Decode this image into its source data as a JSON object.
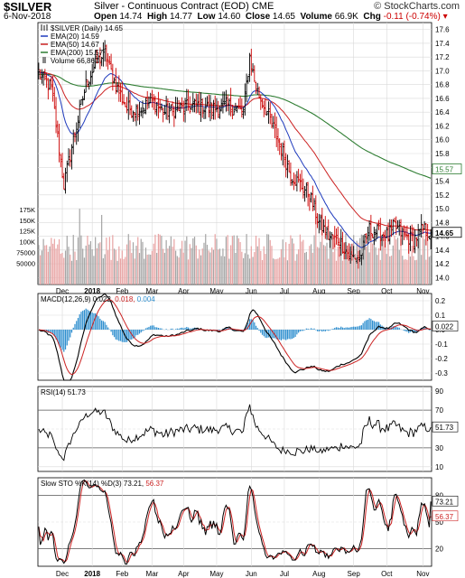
{
  "header": {
    "symbol": "$SILVER",
    "description": "Silver - Continuous Contract (EOD) CME",
    "brand": "© StockCharts.com",
    "date": "6-Nov-2018",
    "open_label": "Open",
    "open": "14.74",
    "high_label": "High",
    "high": "14.77",
    "low_label": "Low",
    "low": "14.60",
    "close_label": "Close",
    "close": "14.65",
    "volume_label": "Volume",
    "volume": "66.9K",
    "chg_label": "Chg",
    "chg": "-0.11 (-0.74%)"
  },
  "legend": {
    "symbol": "$SILVER (Daily) 14.65",
    "ema20": "EMA(20) 14.59",
    "ema50": "EMA(50) 14.67",
    "ema200": "EMA(200) 15.57",
    "volume": "Volume 66,867"
  },
  "colors": {
    "up": "#000000",
    "down": "#cc0000",
    "ema20": "#1f3bbd",
    "ema50": "#cc2222",
    "ema200": "#2e7d32",
    "vol_up": "#a6a6a6",
    "vol_down": "#e8a4a4",
    "macd_hist": "#2f8fcf",
    "grid": "#d9d9d9"
  },
  "chart_data": [
    {
      "type": "candlestick",
      "title": "$SILVER (Daily) 14.65",
      "ylim": [
        13.9,
        17.7
      ],
      "yticks": [
        "14.0",
        "14.2",
        "14.4",
        "14.6",
        "14.8",
        "15.0",
        "15.2",
        "15.4",
        "15.6",
        "15.8",
        "16.0",
        "16.2",
        "16.4",
        "16.6",
        "16.8",
        "17.0",
        "17.2",
        "17.4",
        "17.6"
      ],
      "xticks": [
        "Dec",
        "2018",
        "Feb",
        "Mar",
        "Apr",
        "May",
        "Jun",
        "Jul",
        "Aug",
        "Sep",
        "Oct",
        "Nov"
      ],
      "xtick_index": [
        15,
        34,
        53,
        72,
        92,
        113,
        135,
        156,
        178,
        200,
        221,
        244
      ],
      "n_points": 250,
      "keypoints_close": [
        [
          0,
          16.95
        ],
        [
          8,
          16.75
        ],
        [
          16,
          15.35
        ],
        [
          22,
          16.0
        ],
        [
          30,
          16.8
        ],
        [
          36,
          17.1
        ],
        [
          42,
          17.25
        ],
        [
          48,
          16.85
        ],
        [
          56,
          16.45
        ],
        [
          64,
          16.45
        ],
        [
          72,
          16.55
        ],
        [
          80,
          16.4
        ],
        [
          90,
          16.45
        ],
        [
          100,
          16.5
        ],
        [
          110,
          16.45
        ],
        [
          120,
          16.5
        ],
        [
          130,
          16.4
        ],
        [
          134,
          17.2
        ],
        [
          138,
          16.75
        ],
        [
          145,
          16.4
        ],
        [
          152,
          16.0
        ],
        [
          160,
          15.5
        ],
        [
          166,
          15.35
        ],
        [
          172,
          15.2
        ],
        [
          178,
          14.8
        ],
        [
          184,
          14.6
        ],
        [
          192,
          14.5
        ],
        [
          198,
          14.3
        ],
        [
          204,
          14.3
        ],
        [
          210,
          14.7
        ],
        [
          216,
          14.65
        ],
        [
          222,
          14.6
        ],
        [
          226,
          14.75
        ],
        [
          232,
          14.6
        ],
        [
          238,
          14.55
        ],
        [
          244,
          14.7
        ],
        [
          249,
          14.65
        ]
      ],
      "ema_last": {
        "ema20": 14.59,
        "ema50": 14.67,
        "ema200": 15.57
      },
      "price_labels": [
        "15.57",
        "14.65"
      ],
      "volume_ylim": [
        0,
        200000
      ],
      "volume_ticks": [
        "50000",
        "75000",
        "100K",
        "125K",
        "150K",
        "175K"
      ],
      "volume_last": 66867
    },
    {
      "type": "line",
      "title": "MACD(12,26,9) 0.022, 0.018, 0.004",
      "series": [
        {
          "name": "MACD"
        },
        {
          "name": "Signal"
        },
        {
          "name": "Histogram"
        }
      ],
      "ylim": [
        -0.35,
        0.25
      ],
      "yticks": [
        "0.2",
        "0.1",
        "0.0",
        "-0.1",
        "-0.2",
        "-0.3"
      ],
      "labels": {
        "macd": "MACD(12,26,9)",
        "v1": "0.022",
        "v2": "0.018",
        "v3": "0.004"
      },
      "last": [
        0.022,
        0.018,
        0.004
      ]
    },
    {
      "type": "line",
      "title": "RSI(14) 51.73",
      "ylim": [
        5,
        95
      ],
      "yticks": [
        "90",
        "70",
        "50",
        "30",
        "10"
      ],
      "labels": {
        "rsi": "RSI(14)",
        "v": "51.73"
      },
      "last": 51.73
    },
    {
      "type": "line",
      "title": "Slow STO %K(14) %D(3) 73.21, 56.37",
      "ylim": [
        0,
        100
      ],
      "yticks": [
        "80",
        "50",
        "20"
      ],
      "labels": {
        "sto": "Slow STO %K(14) %D(3)",
        "v1": "73.21",
        "v2": "56.37"
      },
      "last": [
        73.21,
        56.37
      ]
    }
  ]
}
